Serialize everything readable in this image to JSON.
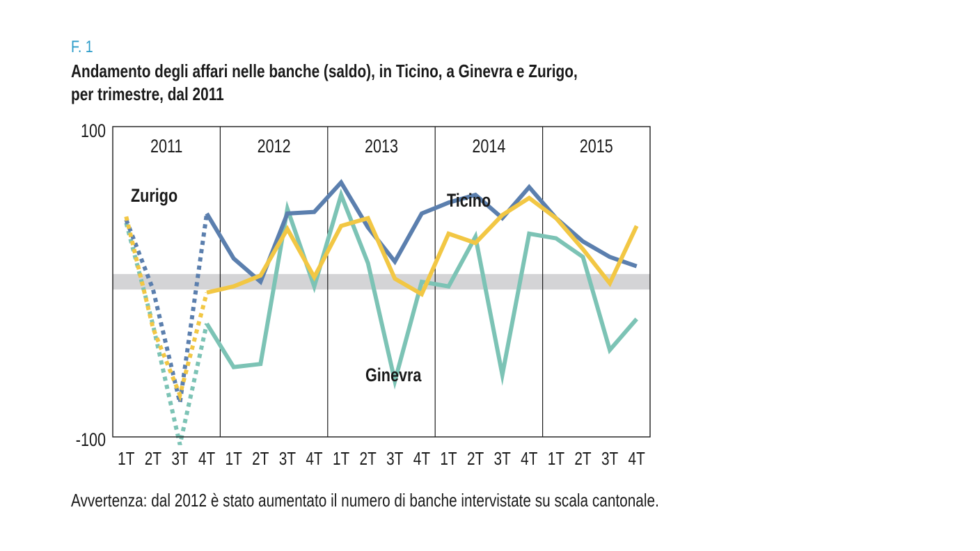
{
  "figure_label": "F. 1",
  "title_line1": "Andamento degli affari nelle banche (saldo), in Ticino, a Ginevra e Zurigo,",
  "title_line2": "per trimestre, dal 2011",
  "note": "Avvertenza: dal 2012 è stato aumentato il numero di banche intervistate su scala cantonale.",
  "colors": {
    "Ticino": "#5b7fae",
    "Ginevra": "#7cc3b5",
    "Zurigo": "#f2c744",
    "band": "#d4d4d6"
  },
  "chart_data": {
    "type": "line",
    "ylim": [
      -100,
      100
    ],
    "yticks": [
      "100",
      "-100"
    ],
    "years": [
      "2011",
      "2012",
      "2013",
      "2014",
      "2015"
    ],
    "quarters": [
      "1T",
      "2T",
      "3T",
      "4T",
      "1T",
      "2T",
      "3T",
      "4T",
      "1T",
      "2T",
      "3T",
      "4T",
      "1T",
      "2T",
      "3T",
      "4T",
      "1T",
      "2T",
      "3T",
      "4T"
    ],
    "neutral_band": [
      -5,
      5
    ],
    "dashed_segment_until_index": 3,
    "series": [
      {
        "name": "Ticino",
        "values": [
          40,
          -5,
          -78,
          44,
          15,
          0,
          44,
          45,
          64,
          35,
          13,
          44,
          51,
          56,
          41,
          61,
          41,
          26,
          16,
          10
        ]
      },
      {
        "name": "Ginevra",
        "values": [
          38,
          -28,
          -105,
          -27,
          -55,
          -53,
          47,
          -3,
          56,
          12,
          -64,
          0,
          -3,
          29,
          -60,
          31,
          28,
          16,
          -44,
          -24
        ]
      },
      {
        "name": "Zurigo",
        "values": [
          42,
          -30,
          -73,
          -7,
          -3,
          4,
          34,
          3,
          36,
          41,
          2,
          -8,
          31,
          25,
          43,
          54,
          41,
          21,
          -1,
          36
        ]
      }
    ],
    "series_labels": [
      "Zurigo",
      "Ticino",
      "Ginevra"
    ]
  }
}
